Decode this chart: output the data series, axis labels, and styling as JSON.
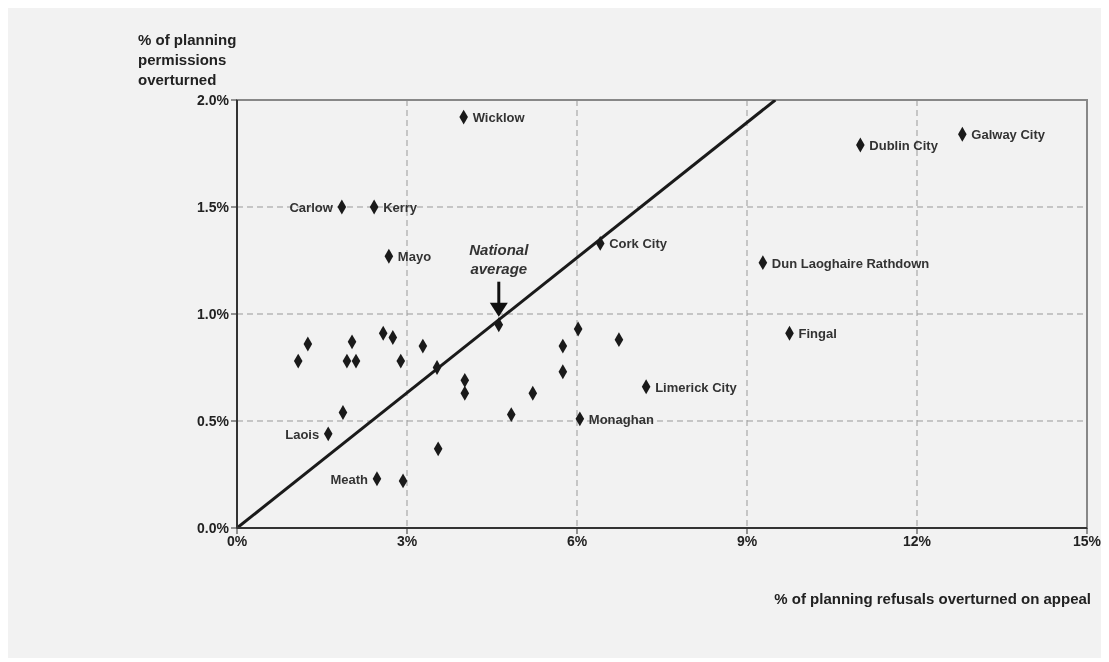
{
  "chart_data": {
    "type": "scatter",
    "xlabel": "% of planning refusals overturned on appeal",
    "ylabel": "% of planning permissions overturned",
    "xlim": [
      0,
      15
    ],
    "ylim": [
      0,
      2
    ],
    "xticks": [
      {
        "value": 0,
        "label": "0%"
      },
      {
        "value": 3,
        "label": "3%"
      },
      {
        "value": 6,
        "label": "6%"
      },
      {
        "value": 9,
        "label": "9%"
      },
      {
        "value": 12,
        "label": "12%"
      },
      {
        "value": 15,
        "label": "15%"
      }
    ],
    "yticks": [
      {
        "value": 0,
        "label": "0.0%"
      },
      {
        "value": 0.5,
        "label": "0.5%"
      },
      {
        "value": 1,
        "label": "1.0%"
      },
      {
        "value": 1.5,
        "label": "1.5%"
      },
      {
        "value": 2,
        "label": "2.0%"
      }
    ],
    "grid": true,
    "marker": "diamond",
    "series": [
      {
        "color": "#1a1a1a",
        "x": [
          4.0,
          1.85,
          2.42,
          2.68,
          1.25,
          1.08,
          2.03,
          1.94,
          2.1,
          2.58,
          2.75,
          2.89,
          3.28,
          3.53,
          4.02,
          4.02,
          5.22,
          4.84,
          6.02,
          5.75,
          5.75,
          6.74,
          7.22,
          6.05,
          1.87,
          1.61,
          3.55,
          2.47,
          2.93,
          6.41,
          11.0,
          12.8,
          9.28,
          9.75
        ],
        "values": [
          1.92,
          1.5,
          1.5,
          1.27,
          0.86,
          0.78,
          0.87,
          0.78,
          0.78,
          0.91,
          0.89,
          0.78,
          0.85,
          0.75,
          0.69,
          0.63,
          0.63,
          0.53,
          0.93,
          0.85,
          0.73,
          0.88,
          0.66,
          0.51,
          0.54,
          0.44,
          0.37,
          0.23,
          0.22,
          1.33,
          1.79,
          1.84,
          1.24,
          0.91
        ]
      },
      {
        "name": "National average",
        "color": "#1a1a1a",
        "x": [
          4.62
        ],
        "values": [
          0.95
        ]
      },
      {
        "type": "line",
        "color": "#1a1a1a",
        "x": [
          0,
          9.5
        ],
        "values": [
          0,
          2.0
        ],
        "marker": "none"
      }
    ],
    "annotations": [
      {
        "text": "Wicklow",
        "x": 4.0,
        "y": 1.92
      },
      {
        "text": "Carlow",
        "x": 1.85,
        "y": 1.5
      },
      {
        "text": "Kerry",
        "x": 2.42,
        "y": 1.5
      },
      {
        "text": "Mayo",
        "x": 2.68,
        "y": 1.27
      },
      {
        "text": "Cork City",
        "x": 6.41,
        "y": 1.33
      },
      {
        "text": "Dublin City",
        "x": 11.0,
        "y": 1.79
      },
      {
        "text": "Galway City",
        "x": 12.8,
        "y": 1.84
      },
      {
        "text": "Dun Laoghaire Rathdown",
        "x": 9.28,
        "y": 1.24
      },
      {
        "text": "Fingal",
        "x": 9.75,
        "y": 0.91
      },
      {
        "text": "Limerick City",
        "x": 7.22,
        "y": 0.66
      },
      {
        "text": "Monaghan",
        "x": 6.05,
        "y": 0.51
      },
      {
        "text": "Laois",
        "x": 1.61,
        "y": 0.44
      },
      {
        "text": "Meath",
        "x": 2.47,
        "y": 0.23
      }
    ]
  }
}
